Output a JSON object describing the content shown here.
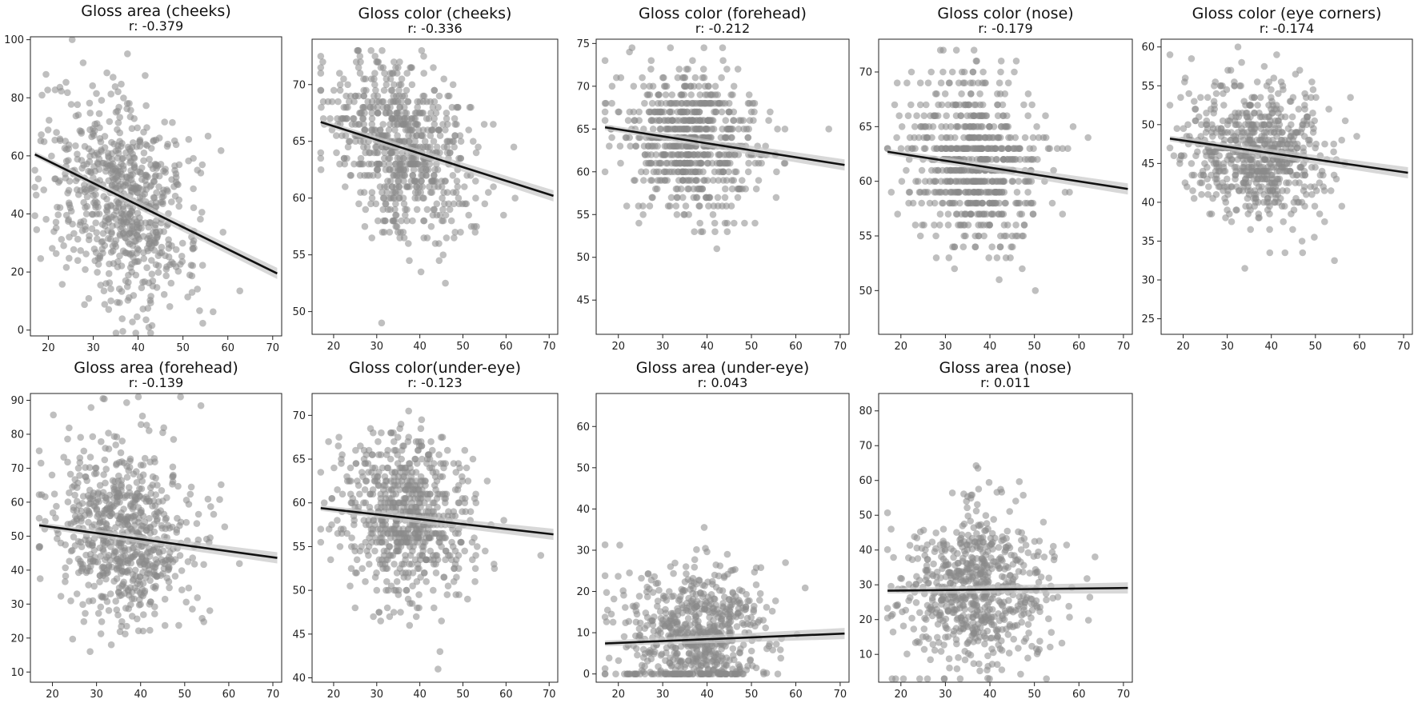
{
  "colors": {
    "points": "#8a8a8a",
    "fit": "#111111",
    "band": "#c8c8c8"
  },
  "chart_data": [
    {
      "type": "scatter",
      "title": "Gloss area (cheeks)",
      "subtitle": "r: -0.379",
      "xlim": [
        16,
        72
      ],
      "ylim": [
        -2,
        101
      ],
      "xticks": [
        "20",
        "30",
        "40",
        "50",
        "60",
        "70"
      ],
      "xtick_values": [
        20,
        30,
        40,
        50,
        60,
        70
      ],
      "yticks": [
        "0",
        "20",
        "40",
        "60",
        "80",
        "100"
      ],
      "ytick_values": [
        0,
        20,
        40,
        60,
        80,
        100
      ],
      "fit": [
        [
          17,
          60.5
        ],
        [
          71,
          19.5
        ]
      ],
      "center": [
        34,
        47
      ],
      "spread": [
        9,
        18
      ],
      "quantized_y": 0,
      "points_count": 700
    },
    {
      "type": "scatter",
      "title": "Gloss color (cheeks)",
      "subtitle": "r: -0.336",
      "xlim": [
        15,
        72
      ],
      "ylim": [
        48,
        74
      ],
      "xticks": [
        "20",
        "30",
        "40",
        "50",
        "60",
        "70"
      ],
      "xtick_values": [
        20,
        30,
        40,
        50,
        60,
        70
      ],
      "yticks": [
        "50",
        "55",
        "60",
        "65",
        "70"
      ],
      "ytick_values": [
        50,
        55,
        60,
        65,
        70
      ],
      "fit": [
        [
          17,
          66.7
        ],
        [
          71,
          60.2
        ]
      ],
      "center": [
        33,
        65
      ],
      "spread": [
        9,
        3.6
      ],
      "quantized_y": 0.5,
      "points_count": 700
    },
    {
      "type": "scatter",
      "title": "Gloss color (forehead)",
      "subtitle": "r: -0.212",
      "xlim": [
        15,
        72
      ],
      "ylim": [
        41,
        75.5
      ],
      "xticks": [
        "20",
        "30",
        "40",
        "50",
        "60",
        "70"
      ],
      "xtick_values": [
        20,
        30,
        40,
        50,
        60,
        70
      ],
      "yticks": [
        "45",
        "50",
        "55",
        "60",
        "65",
        "70",
        "75"
      ],
      "ytick_values": [
        45,
        50,
        55,
        60,
        65,
        70,
        75
      ],
      "fit": [
        [
          17,
          65.2
        ],
        [
          71,
          60.8
        ]
      ],
      "center": [
        34,
        63.5
      ],
      "spread": [
        9,
        4.2
      ],
      "quantized_y": 1,
      "points_count": 700
    },
    {
      "type": "scatter",
      "title": "Gloss color (nose)",
      "subtitle": "r: -0.179",
      "xlim": [
        15,
        72
      ],
      "ylim": [
        46,
        73
      ],
      "xticks": [
        "20",
        "30",
        "40",
        "50",
        "60",
        "70"
      ],
      "xtick_values": [
        20,
        30,
        40,
        50,
        60,
        70
      ],
      "yticks": [
        "50",
        "55",
        "60",
        "65",
        "70"
      ],
      "ytick_values": [
        50,
        55,
        60,
        65,
        70
      ],
      "fit": [
        [
          17,
          62.7
        ],
        [
          71,
          59.3
        ]
      ],
      "center": [
        34,
        61.5
      ],
      "spread": [
        9,
        3.8
      ],
      "quantized_y": 1,
      "points_count": 700
    },
    {
      "type": "scatter",
      "title": "Gloss color (eye corners)",
      "subtitle": "r: -0.174",
      "xlim": [
        15,
        72
      ],
      "ylim": [
        23,
        61
      ],
      "xticks": [
        "20",
        "30",
        "40",
        "50",
        "60",
        "70"
      ],
      "xtick_values": [
        20,
        30,
        40,
        50,
        60,
        70
      ],
      "yticks": [
        "25",
        "30",
        "35",
        "40",
        "45",
        "50",
        "55",
        "60"
      ],
      "ytick_values": [
        25,
        30,
        35,
        40,
        45,
        50,
        55,
        60
      ],
      "fit": [
        [
          17,
          48.2
        ],
        [
          71,
          43.8
        ]
      ],
      "center": [
        34,
        47
      ],
      "spread": [
        9,
        4.5
      ],
      "quantized_y": 0.5,
      "points_count": 700
    },
    {
      "type": "scatter",
      "title": "Gloss area (forehead)",
      "subtitle": "r: -0.139",
      "xlim": [
        15,
        72
      ],
      "ylim": [
        7,
        92
      ],
      "xticks": [
        "20",
        "30",
        "40",
        "50",
        "60",
        "70"
      ],
      "xtick_values": [
        20,
        30,
        40,
        50,
        60,
        70
      ],
      "yticks": [
        "10",
        "20",
        "30",
        "40",
        "50",
        "60",
        "70",
        "80",
        "90"
      ],
      "ytick_values": [
        10,
        20,
        30,
        40,
        50,
        60,
        70,
        80,
        90
      ],
      "fit": [
        [
          17,
          53.2
        ],
        [
          71,
          43.6
        ]
      ],
      "center": [
        34,
        50
      ],
      "spread": [
        9,
        13
      ],
      "quantized_y": 0,
      "points_count": 700
    },
    {
      "type": "scatter",
      "title": "Gloss color(under-eye)",
      "subtitle": "r: -0.123",
      "xlim": [
        15,
        72
      ],
      "ylim": [
        39.5,
        72.5
      ],
      "xticks": [
        "20",
        "30",
        "40",
        "50",
        "60",
        "70"
      ],
      "xtick_values": [
        20,
        30,
        40,
        50,
        60,
        70
      ],
      "yticks": [
        "40",
        "45",
        "50",
        "55",
        "60",
        "65",
        "70"
      ],
      "ytick_values": [
        40,
        45,
        50,
        55,
        60,
        65,
        70
      ],
      "fit": [
        [
          17,
          59.4
        ],
        [
          71,
          56.4
        ]
      ],
      "center": [
        34,
        58
      ],
      "spread": [
        9,
        4.5
      ],
      "quantized_y": 0.5,
      "points_count": 700
    },
    {
      "type": "scatter",
      "title": "Gloss area (under-eye)",
      "subtitle": "r: 0.043",
      "xlim": [
        15,
        72
      ],
      "ylim": [
        -2,
        68
      ],
      "xticks": [
        "20",
        "30",
        "40",
        "50",
        "60",
        "70"
      ],
      "xtick_values": [
        20,
        30,
        40,
        50,
        60,
        70
      ],
      "yticks": [
        "0",
        "10",
        "20",
        "30",
        "40",
        "50",
        "60"
      ],
      "ytick_values": [
        0,
        10,
        20,
        30,
        40,
        50,
        60
      ],
      "fit": [
        [
          17,
          7.4
        ],
        [
          71,
          9.8
        ]
      ],
      "center": [
        35,
        9
      ],
      "spread": [
        9,
        9
      ],
      "quantized_y": 0,
      "floor": 0,
      "points_count": 700
    },
    {
      "type": "scatter",
      "title": "Gloss area (nose)",
      "subtitle": "r: 0.011",
      "xlim": [
        15,
        72
      ],
      "ylim": [
        2,
        85
      ],
      "xticks": [
        "20",
        "30",
        "40",
        "50",
        "60",
        "70"
      ],
      "xtick_values": [
        20,
        30,
        40,
        50,
        60,
        70
      ],
      "yticks": [
        "10",
        "20",
        "30",
        "40",
        "50",
        "60",
        "70",
        "80"
      ],
      "ytick_values": [
        10,
        20,
        30,
        40,
        50,
        60,
        70,
        80
      ],
      "fit": [
        [
          17,
          28.3
        ],
        [
          71,
          29.1
        ]
      ],
      "center": [
        34,
        28
      ],
      "spread": [
        9,
        11
      ],
      "quantized_y": 0,
      "points_count": 700
    }
  ]
}
